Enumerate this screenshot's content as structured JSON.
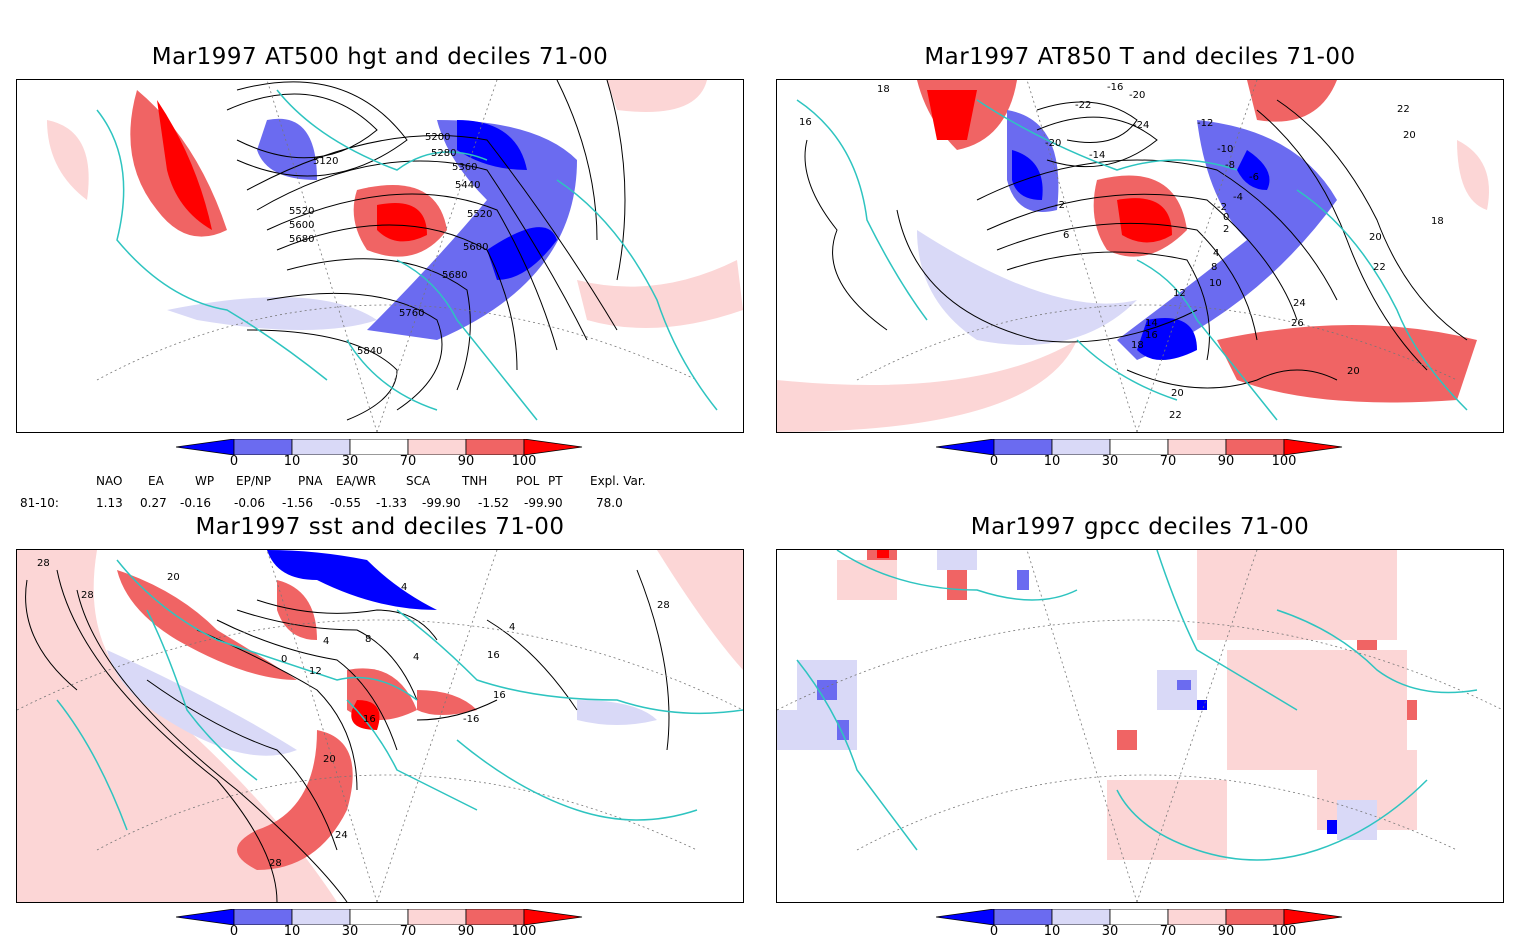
{
  "panels": [
    {
      "id": "p1",
      "title": "Mar1997 AT500 hgt and deciles 71-00",
      "contour_labels": [
        "5120",
        "5200",
        "5280",
        "5360",
        "5440",
        "5520",
        "5600",
        "5680",
        "5520",
        "5600",
        "5680",
        "5760",
        "5840"
      ]
    },
    {
      "id": "p2",
      "title": "Mar1997 AT850 T and deciles 71-00",
      "contour_labels": [
        "16",
        "18",
        "-16",
        "-20",
        "-24",
        "-22",
        "-12",
        "-10",
        "-14",
        "-8",
        "-6",
        "-4",
        "-2",
        "0",
        "2",
        "4",
        "6",
        "8",
        "10",
        "12",
        "14",
        "16",
        "18",
        "20",
        "22",
        "24",
        "26",
        "-20",
        "-2",
        "22",
        "20",
        "18",
        "20",
        "22",
        "20"
      ]
    },
    {
      "id": "p3",
      "title": "Mar1997 sst and deciles 71-00",
      "contour_labels": [
        "28",
        "28",
        "20",
        "0",
        "4",
        "4",
        "8",
        "12",
        "16",
        "20",
        "24",
        "28",
        "16",
        "4",
        "16",
        "-16",
        "4",
        "28"
      ]
    },
    {
      "id": "p4",
      "title": "Mar1997 gpcc deciles 71-00",
      "contour_labels": []
    }
  ],
  "colorbar": {
    "tick_labels": [
      "0",
      "10",
      "30",
      "70",
      "90",
      "100"
    ],
    "colors": [
      "#0000ff",
      "#6b6bf0",
      "#d9d9f7",
      "#ffffff",
      "#fcd6d6",
      "#f06464",
      "#ff0000"
    ]
  },
  "indices": {
    "row_label": "81-10:",
    "headers": [
      "NAO",
      "EA",
      "WP",
      "EP/NP",
      "PNA",
      "EA/WR",
      "SCA",
      "TNH",
      "POL",
      "PT",
      "Expl. Var."
    ],
    "values": [
      "1.13",
      "0.27",
      "-0.16",
      "-0.06",
      "-1.56",
      "-0.55",
      "-1.33",
      "-99.90",
      "-1.52",
      "-99.90",
      "78.0"
    ]
  },
  "colors": {
    "coast": "#2ec4c0",
    "strong_blue": "#0000ff",
    "mid_blue": "#6b6bf0",
    "light_blue": "#d9d9f7",
    "light_red": "#fcd6d6",
    "mid_red": "#f06464",
    "strong_red": "#ff0000"
  }
}
